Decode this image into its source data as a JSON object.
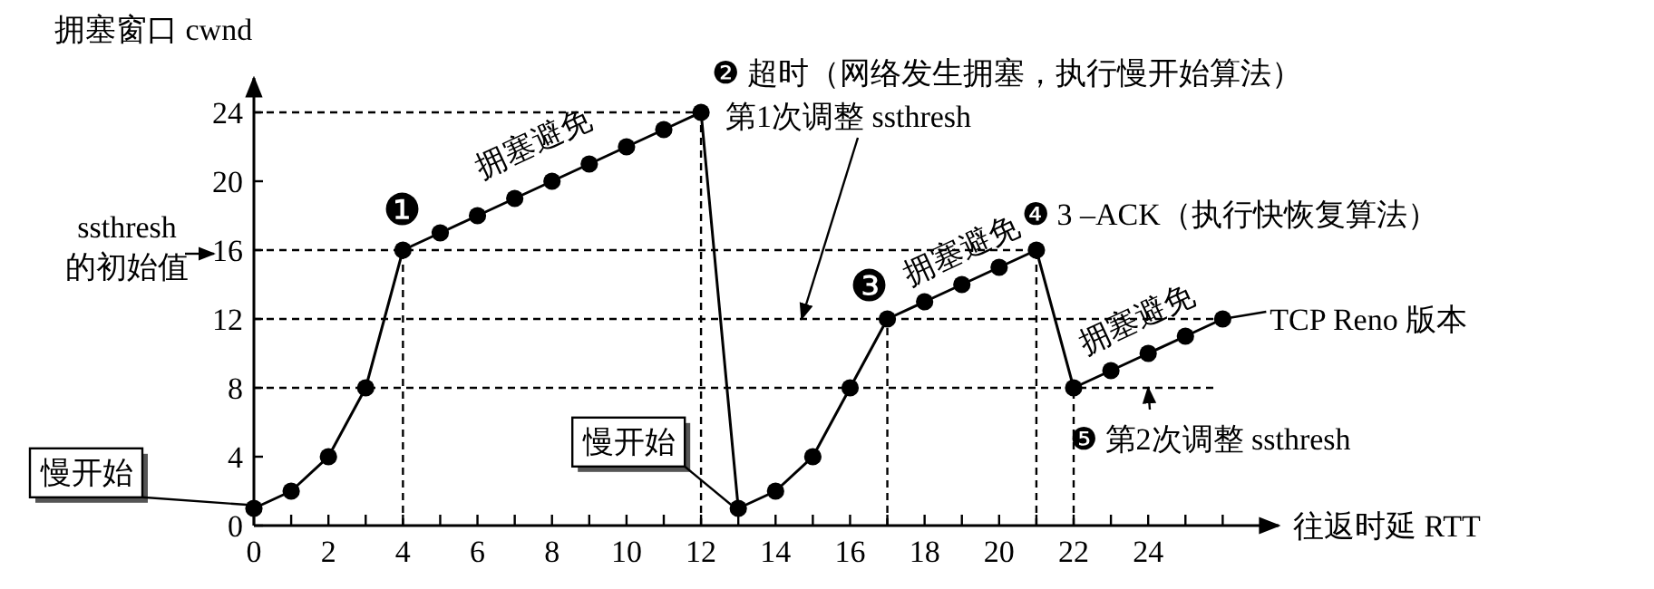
{
  "chart_data": {
    "type": "line",
    "ylabel": "拥塞窗口 cwnd",
    "xlabel": "往返时延 RTT",
    "series": [
      {
        "color": "#000000",
        "x": [
          0,
          1,
          2,
          3,
          4,
          5,
          6,
          7,
          8,
          9,
          10,
          11,
          12,
          13,
          14,
          15,
          16,
          17,
          18,
          19,
          20,
          21,
          22,
          23,
          24,
          25,
          26
        ],
        "values": [
          1,
          2,
          4,
          8,
          16,
          17,
          18,
          19,
          20,
          21,
          22,
          23,
          24,
          1,
          2,
          4,
          8,
          12,
          13,
          14,
          15,
          16,
          8,
          9,
          10,
          11,
          12
        ]
      }
    ],
    "marker": "circle",
    "line_style": "solid",
    "xlim": [
      0,
      27.5
    ],
    "ylim": [
      0,
      26
    ],
    "xticks": [
      0,
      {
        "value": 1,
        "label": null
      },
      2,
      {
        "value": 3,
        "label": null
      },
      4,
      {
        "value": 5,
        "label": null
      },
      6,
      {
        "value": 7,
        "label": null
      },
      8,
      {
        "value": 9,
        "label": null
      },
      10,
      {
        "value": 11,
        "label": null
      },
      12,
      {
        "value": 13,
        "label": null
      },
      14,
      {
        "value": 15,
        "label": null
      },
      16,
      {
        "value": 17,
        "label": null
      },
      18,
      {
        "value": 19,
        "label": null
      },
      20,
      {
        "value": 21,
        "label": null
      },
      22,
      {
        "value": 23,
        "label": null
      },
      24,
      {
        "value": 25,
        "label": null
      },
      {
        "value": 26,
        "label": null
      }
    ],
    "yticks": [
      0,
      4,
      8,
      12,
      16,
      20,
      24
    ],
    "ref_lines": [
      {
        "axis": "y",
        "value": 24,
        "line_style": "dashed"
      },
      {
        "axis": "y",
        "value": 16,
        "label": "ssthresh\n的初始值",
        "line_style": "dashed"
      },
      {
        "axis": "y",
        "value": 12,
        "label": "第1次调整 ssthresh",
        "line_style": "dashed"
      },
      {
        "axis": "y",
        "value": 8,
        "label": "❺ 第2次调整 ssthresh",
        "line_style": "dashed"
      },
      {
        "axis": "x",
        "value": 4,
        "line_style": "dashed"
      },
      {
        "axis": "x",
        "value": 12,
        "line_style": "dashed"
      },
      {
        "axis": "x",
        "value": 17,
        "line_style": "dashed"
      },
      {
        "axis": "x",
        "value": 21,
        "line_style": "dashed"
      },
      {
        "axis": "x",
        "value": 22,
        "line_style": "dashed"
      }
    ],
    "annotations": [
      {
        "text": "慢开始",
        "x": 0,
        "y": 1
      },
      {
        "text": "慢开始",
        "x": 13,
        "y": 1
      },
      {
        "text": "❶",
        "x": 4,
        "y": 16
      },
      {
        "text": "拥塞避免",
        "x": 8,
        "y": 20
      },
      {
        "text": "❷ 超时（网络发生拥塞，执行慢开始算法）",
        "x": 12,
        "y": 24
      },
      {
        "text": "❸",
        "x": 17,
        "y": 12
      },
      {
        "text": "拥塞避免",
        "x": 19,
        "y": 14
      },
      {
        "text": "❹ 3 –ACK（执行快恢复算法）",
        "x": 21,
        "y": 16
      },
      {
        "text": "拥塞避免",
        "x": 24,
        "y": 10
      },
      {
        "text": "TCP Reno 版本",
        "x": 26,
        "y": 12
      }
    ]
  }
}
